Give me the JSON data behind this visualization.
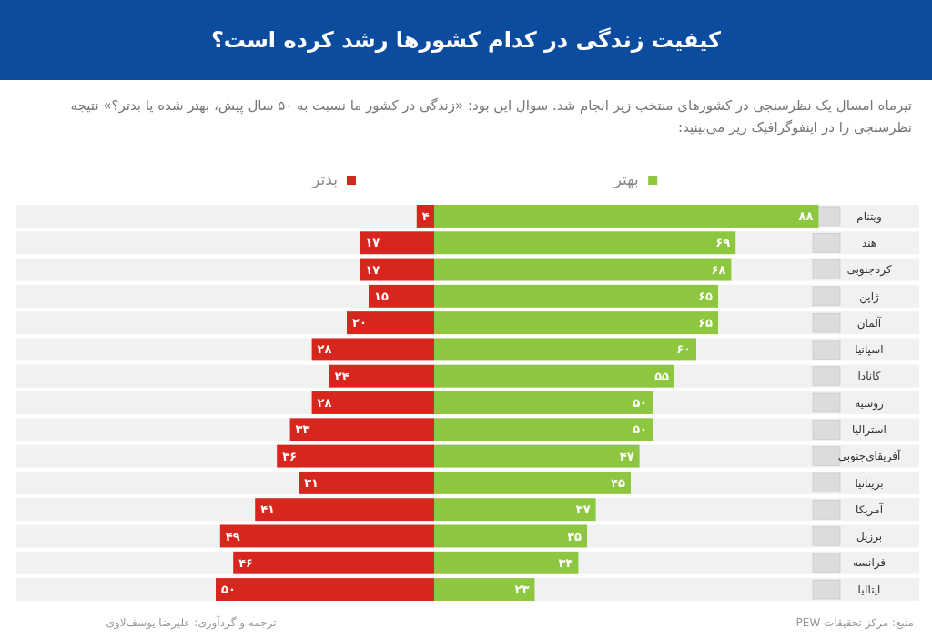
{
  "chart_data": [
    {
      "type": "bar",
      "orientation": "horizontal",
      "title": "کیفیت زندگی در کدام کشورها رشد کرده است؟",
      "subtitle": "تیرماه امسال یک نظرسنجی در کشورهای منتخب زیر انجام شد. سوال این بود: «زندگی در کشور ما نسبت به ۵۰ سال پیش، بهتر شده یا بدتر؟» نتیجه نظرسنجی را در اینفوگرافیک زیر می‌بینید:",
      "categories": [
        "ویتنام",
        "هند",
        "کره‌جنوبی",
        "ژاپن",
        "آلمان",
        "اسپانیا",
        "کانادا",
        "روسیه",
        "استرالیا",
        "آفریقای‌جنوبی",
        "بریتانیا",
        "آمریکا",
        "برزیل",
        "فرانسه",
        "ایتالیا"
      ],
      "xlim": [
        0,
        88
      ],
      "series": [
        {
          "name": "بهتر",
          "color": "#8dc63f",
          "values": [
            88,
            69,
            68,
            65,
            65,
            60,
            55,
            50,
            50,
            47,
            45,
            37,
            35,
            33,
            23
          ],
          "value_labels": [
            "۸۸",
            "۶۹",
            "۶۸",
            "۶۵",
            "۶۵",
            "۶۰",
            "۵۵",
            "۵۰",
            "۵۰",
            "۴۷",
            "۴۵",
            "۳۷",
            "۳۵",
            "۳۳",
            "۲۳"
          ]
        }
      ],
      "legend": "top",
      "annotations": [
        "منبع: مرکز تحقیقات PEW",
        "ترجمه و گردآوری: علیرضا یوسف‌لاوی"
      ]
    },
    {
      "type": "bar",
      "orientation": "horizontal",
      "categories": [
        null,
        null,
        null,
        null,
        null,
        null,
        null,
        null,
        null,
        null,
        null,
        null,
        null,
        null,
        null
      ],
      "xlim": [
        50,
        0
      ],
      "tick_labels": false,
      "series": [
        {
          "name": "بدتر",
          "color": "#d7261e",
          "values": [
            4,
            17,
            17,
            15,
            20,
            28,
            24,
            28,
            33,
            36,
            31,
            41,
            49,
            46,
            50
          ],
          "value_labels": [
            "۴",
            "۱۷",
            "۱۷",
            "۱۵",
            "۲۰",
            "۲۸",
            "۲۴",
            "۲۸",
            "۳۳",
            "۳۶",
            "۳۱",
            "۴۱",
            "۴۹",
            "۴۶",
            "۵۰"
          ]
        }
      ],
      "legend": "top"
    }
  ]
}
